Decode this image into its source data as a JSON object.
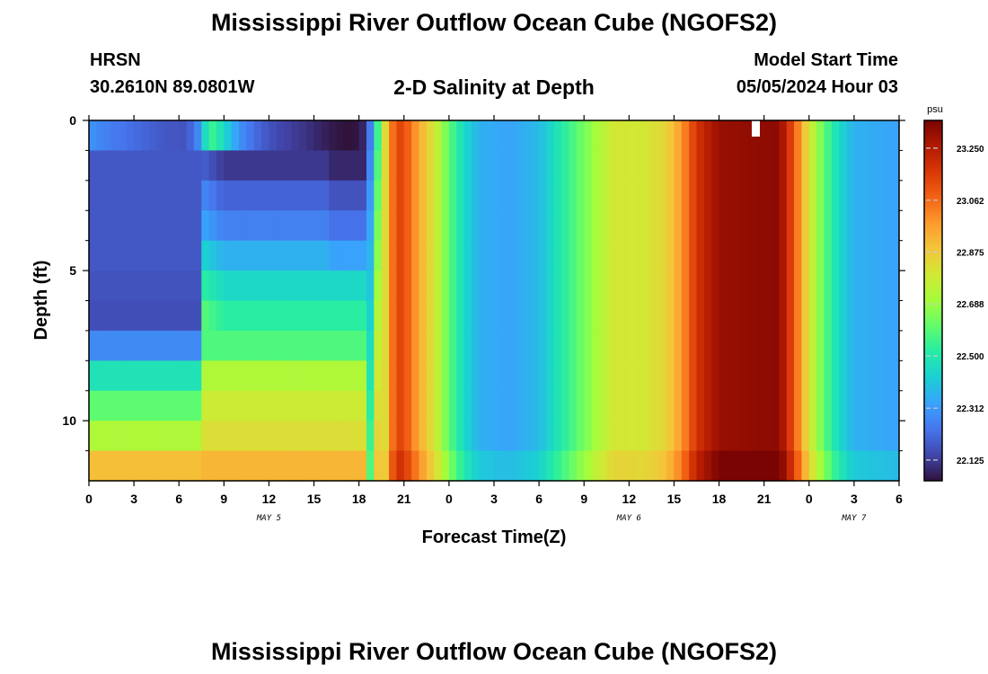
{
  "header": {
    "title": "Mississippi River Outflow Ocean Cube (NGOFS2)",
    "station": "HRSN",
    "coords": "30.2610N  89.0801W",
    "subtitle": "2-D Salinity at Depth",
    "model_start_label": "Model Start Time",
    "model_start_value": "05/05/2024 Hour 03"
  },
  "footer": {
    "title": "Mississippi River Outflow Ocean Cube (NGOFS2)"
  },
  "chart_data": {
    "type": "heatmap",
    "xlabel": "Forecast Time(Z)",
    "ylabel": "Depth (ft)",
    "x_range_hours": [
      0,
      54
    ],
    "x_ticks": [
      {
        "h": 0,
        "label": "0"
      },
      {
        "h": 3,
        "label": "3"
      },
      {
        "h": 6,
        "label": "6"
      },
      {
        "h": 9,
        "label": "9"
      },
      {
        "h": 12,
        "label": "12"
      },
      {
        "h": 15,
        "label": "15"
      },
      {
        "h": 18,
        "label": "18"
      },
      {
        "h": 21,
        "label": "21"
      },
      {
        "h": 24,
        "label": "0"
      },
      {
        "h": 27,
        "label": "3"
      },
      {
        "h": 30,
        "label": "6"
      },
      {
        "h": 33,
        "label": "9"
      },
      {
        "h": 36,
        "label": "12"
      },
      {
        "h": 39,
        "label": "15"
      },
      {
        "h": 42,
        "label": "18"
      },
      {
        "h": 45,
        "label": "21"
      },
      {
        "h": 48,
        "label": "0"
      },
      {
        "h": 51,
        "label": "3"
      },
      {
        "h": 54,
        "label": "6"
      }
    ],
    "day_labels": [
      {
        "h": 12,
        "label": "MAY 5"
      },
      {
        "h": 36,
        "label": "MAY 6"
      },
      {
        "h": 51,
        "label": "MAY 7"
      }
    ],
    "y_range": [
      0,
      12
    ],
    "y_ticks": [
      {
        "v": 0,
        "label": "0"
      },
      {
        "v": 5,
        "label": "5"
      },
      {
        "v": 10,
        "label": "10"
      }
    ],
    "y_minor_ticks": [
      1,
      2,
      3,
      4,
      6,
      7,
      8,
      9,
      11
    ],
    "colorbar": {
      "unit": "psu",
      "range": [
        22.05,
        23.35
      ],
      "ticks": [
        22.125,
        22.312,
        22.5,
        22.688,
        22.875,
        23.062,
        23.25
      ],
      "tick_labels": [
        "22.125",
        "22.312",
        "22.500",
        "22.688",
        "22.875",
        "23.062",
        "23.250"
      ],
      "colors": [
        "#30123b",
        "#4145ab",
        "#4675ed",
        "#39a2fc",
        "#1bcfd4",
        "#24eca6",
        "#61fc6c",
        "#a4fc3b",
        "#d1e834",
        "#f3c63a",
        "#fe9b2d",
        "#f36315",
        "#d93806",
        "#b11901",
        "#7a0403"
      ]
    },
    "depth_levels": 12,
    "time_step_hours": 0.5,
    "salinity_surface_profile": [
      {
        "h": 0,
        "v": 22.3
      },
      {
        "h": 0.5,
        "v": 22.28
      },
      {
        "h": 1.5,
        "v": 22.25
      },
      {
        "h": 3,
        "v": 22.22
      },
      {
        "h": 5,
        "v": 22.18
      },
      {
        "h": 6.5,
        "v": 22.17
      },
      {
        "h": 7.3,
        "v": 22.28
      },
      {
        "h": 7.8,
        "v": 22.48
      },
      {
        "h": 8.3,
        "v": 22.55
      },
      {
        "h": 9,
        "v": 22.45
      },
      {
        "h": 10,
        "v": 22.3
      },
      {
        "h": 11,
        "v": 22.22
      },
      {
        "h": 12.5,
        "v": 22.15
      },
      {
        "h": 14,
        "v": 22.12
      },
      {
        "h": 16,
        "v": 22.07
      },
      {
        "h": 17.5,
        "v": 22.04
      },
      {
        "h": 18.5,
        "v": 22.1
      },
      {
        "h": 19,
        "v": 22.4
      },
      {
        "h": 19.5,
        "v": 22.7
      },
      {
        "h": 20,
        "v": 22.95
      },
      {
        "h": 20.5,
        "v": 23.15
      },
      {
        "h": 21,
        "v": 23.12
      },
      {
        "h": 22,
        "v": 22.95
      },
      {
        "h": 23,
        "v": 22.8
      },
      {
        "h": 24,
        "v": 22.6
      },
      {
        "h": 25,
        "v": 22.45
      },
      {
        "h": 26,
        "v": 22.36
      },
      {
        "h": 28,
        "v": 22.33
      },
      {
        "h": 30,
        "v": 22.38
      },
      {
        "h": 32,
        "v": 22.55
      },
      {
        "h": 34,
        "v": 22.72
      },
      {
        "h": 35,
        "v": 22.8
      },
      {
        "h": 37,
        "v": 22.79
      },
      {
        "h": 38.5,
        "v": 22.85
      },
      {
        "h": 39.5,
        "v": 22.98
      },
      {
        "h": 40.5,
        "v": 23.18
      },
      {
        "h": 42,
        "v": 23.3
      },
      {
        "h": 46,
        "v": 23.32
      },
      {
        "h": 47,
        "v": 23.1
      },
      {
        "h": 48,
        "v": 22.8
      },
      {
        "h": 49,
        "v": 22.6
      },
      {
        "h": 50,
        "v": 22.45
      },
      {
        "h": 51,
        "v": 22.36
      },
      {
        "h": 54,
        "v": 22.33
      }
    ]
  }
}
